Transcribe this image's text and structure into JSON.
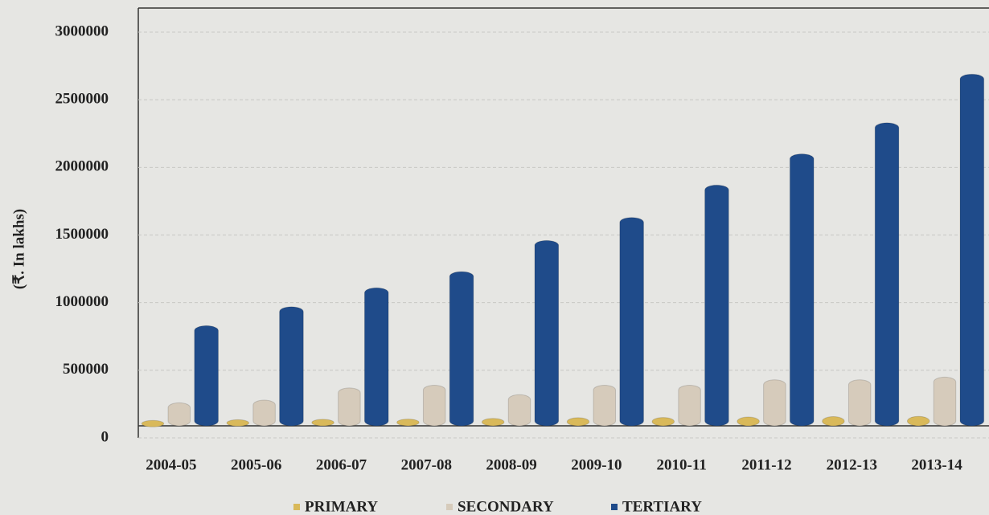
{
  "chart_data": {
    "type": "bar",
    "y_label": "(₹. In lakhs)",
    "categories": [
      "2004-05",
      "2005-06",
      "2006-07",
      "2007-08",
      "2008-09",
      "2009-10",
      "2010-11",
      "2011-12",
      "2012-13",
      "2013-14"
    ],
    "series": [
      {
        "name": "PRIMARY",
        "color": "#d9b95a",
        "values": [
          40000,
          45000,
          48000,
          50000,
          55000,
          60000,
          62000,
          65000,
          68000,
          70000
        ]
      },
      {
        "name": "SECONDARY",
        "color": "#d6cbbb",
        "values": [
          170000,
          190000,
          280000,
          300000,
          230000,
          300000,
          300000,
          340000,
          340000,
          360000
        ]
      },
      {
        "name": "TERTIARY",
        "color": "#1f4b8a",
        "values": [
          740000,
          880000,
          1020000,
          1140000,
          1370000,
          1540000,
          1780000,
          2010000,
          2240000,
          2600000
        ]
      }
    ],
    "ylim": [
      0,
      3000000
    ],
    "yticks": [
      0,
      500000,
      1000000,
      1500000,
      2000000,
      2500000,
      3000000
    ],
    "grid": true
  }
}
